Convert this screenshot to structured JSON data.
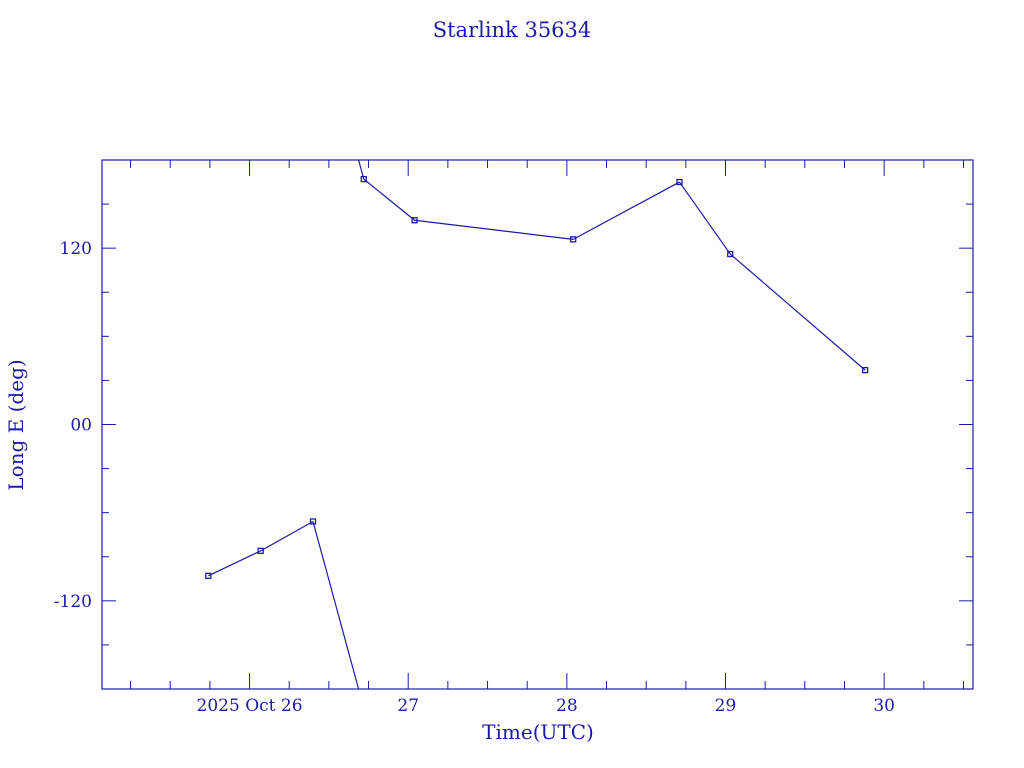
{
  "chart_data": {
    "type": "line",
    "title": "Starlink 35634",
    "xlabel": "Time(UTC)",
    "ylabel": "Long E (deg)",
    "xlim": [
      25.07,
      30.56
    ],
    "ylim": [
      -180,
      180
    ],
    "x_ticks": [
      {
        "value": 26,
        "label": "2025 Oct 26"
      },
      {
        "value": 27,
        "label": "27"
      },
      {
        "value": 28,
        "label": "28"
      },
      {
        "value": 29,
        "label": "29"
      },
      {
        "value": 30,
        "label": "30"
      }
    ],
    "y_ticks": [
      {
        "value": 120,
        "label": "120"
      },
      {
        "value": 0,
        "label": "00"
      },
      {
        "value": -120,
        "label": "-120"
      }
    ],
    "x_unit": "day of October 2025 (UTC)",
    "longitude_wraps": true,
    "grid": false,
    "color": "#1a1aa6",
    "points": [
      {
        "x": 25.74,
        "y": -103
      },
      {
        "x": 26.07,
        "y": -86
      },
      {
        "x": 26.4,
        "y": -66
      },
      {
        "x": 26.72,
        "y": 167
      },
      {
        "x": 27.04,
        "y": 139
      },
      {
        "x": 28.04,
        "y": 126
      },
      {
        "x": 28.71,
        "y": 165
      },
      {
        "x": 29.03,
        "y": 116
      },
      {
        "x": 29.88,
        "y": 37
      }
    ]
  }
}
